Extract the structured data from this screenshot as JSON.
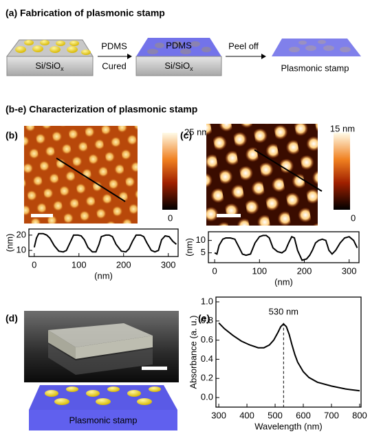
{
  "panel_a": {
    "title": "(a) Fabrication of plasmonic stamp",
    "substrate": "Si/SiO",
    "substrate_subscript": "x",
    "step1_top": "PDMS",
    "step1_bottom": "Cured",
    "pdms_label": "PDMS",
    "step2": "Peel off",
    "result": "Plasmonic stamp"
  },
  "panel_be": {
    "title": "(b-e) Characterization of plasmonic stamp",
    "labels": [
      "(b)",
      "(c)",
      "(d)",
      "(e)"
    ],
    "colorbar_b": {
      "max": "25 nm",
      "min": "0"
    },
    "colorbar_c": {
      "max": "15 nm",
      "min": "0"
    },
    "stamp_label": "Plasmonic stamp"
  },
  "chart_data": [
    {
      "type": "line",
      "xlabel": "(nm)",
      "ylabel": "(nm)",
      "color": "#000000",
      "xlim": [
        -12,
        322
      ],
      "ylim": [
        6,
        24
      ],
      "xticks": [
        0,
        100,
        200,
        300
      ],
      "yticks": [
        10,
        20
      ],
      "x": [
        0,
        5,
        10,
        20,
        28,
        35,
        45,
        55,
        65,
        72,
        80,
        88,
        98,
        105,
        112,
        120,
        130,
        138,
        145,
        150,
        160,
        168,
        175,
        183,
        195,
        205,
        212,
        220,
        228,
        238,
        245,
        252,
        262,
        270,
        278,
        285,
        293,
        302,
        310,
        318
      ],
      "values": [
        12,
        18,
        21,
        21,
        20,
        18,
        13,
        9.5,
        9,
        10,
        15,
        20,
        20,
        19.5,
        17,
        12,
        9,
        9,
        14,
        19,
        20,
        20,
        19,
        14,
        9.5,
        9,
        11,
        16,
        20,
        20,
        19,
        15,
        10,
        9,
        10,
        17,
        19.5,
        19,
        16,
        14
      ]
    },
    {
      "type": "line",
      "xlabel": "(nm)",
      "ylabel": "(nm)",
      "color": "#000000",
      "xlim": [
        -14,
        322
      ],
      "ylim": [
        1,
        13.5
      ],
      "xticks": [
        0,
        100,
        200,
        300
      ],
      "yticks": [
        5,
        10
      ],
      "x": [
        0,
        5,
        10,
        18,
        25,
        35,
        45,
        55,
        62,
        70,
        80,
        90,
        100,
        108,
        115,
        122,
        130,
        140,
        150,
        158,
        165,
        172,
        178,
        185,
        195,
        205,
        212,
        218,
        225,
        232,
        240,
        248,
        255,
        262,
        270,
        280,
        290,
        300,
        310,
        318
      ],
      "values": [
        5,
        4.5,
        8,
        10.5,
        11,
        11,
        10.5,
        7,
        4.5,
        4,
        4.5,
        9,
        11.5,
        12,
        12,
        11,
        7,
        5.5,
        5,
        6,
        9,
        11.5,
        11,
        6,
        2,
        2.5,
        4,
        6,
        9,
        10,
        10.5,
        10,
        6,
        4.5,
        6,
        9,
        11,
        11.5,
        10,
        7
      ]
    },
    {
      "type": "line",
      "xlabel": "Wavelength (nm)",
      "ylabel": "Absorbance (a. u.)",
      "color": "#000000",
      "xlim": [
        290,
        805
      ],
      "ylim": [
        -0.1,
        1.05
      ],
      "xticks": [
        300,
        400,
        500,
        600,
        700,
        800
      ],
      "yticks": [
        {
          "value": 0,
          "label": "0.0"
        },
        0.2,
        0.4,
        0.6,
        0.8,
        {
          "value": 1,
          "label": "1.0"
        }
      ],
      "x": [
        300,
        320,
        350,
        380,
        410,
        440,
        460,
        480,
        495,
        510,
        520,
        530,
        540,
        550,
        560,
        570,
        580,
        600,
        620,
        650,
        700,
        750,
        800
      ],
      "values": [
        0.78,
        0.72,
        0.65,
        0.59,
        0.55,
        0.52,
        0.52,
        0.55,
        0.6,
        0.68,
        0.74,
        0.77,
        0.74,
        0.66,
        0.55,
        0.45,
        0.37,
        0.27,
        0.21,
        0.16,
        0.12,
        0.09,
        0.07
      ],
      "marker_x": 530,
      "annotation": "530 nm"
    }
  ]
}
